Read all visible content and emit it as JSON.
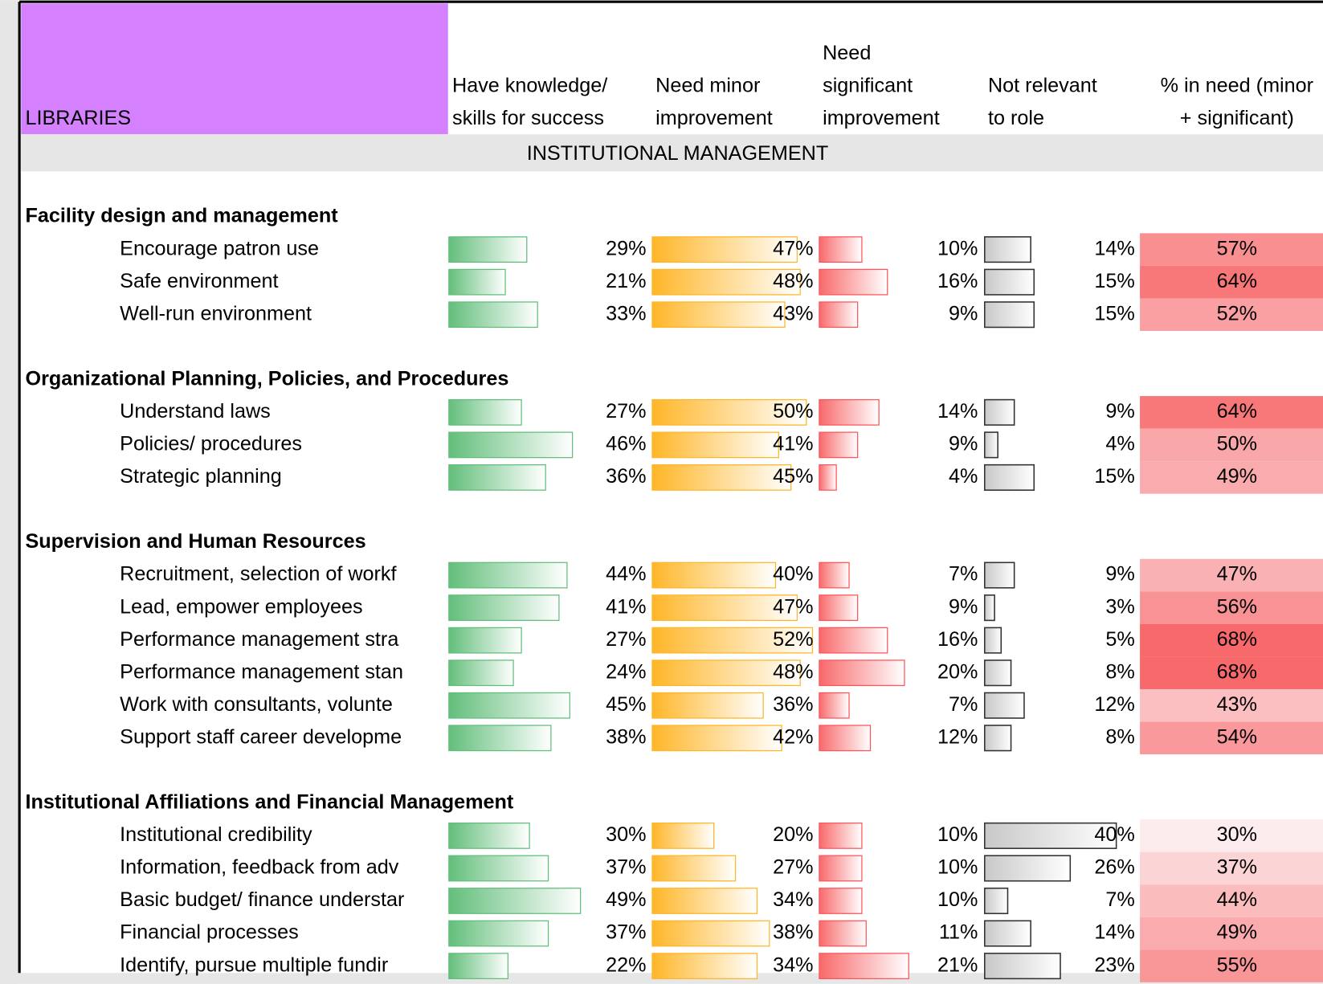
{
  "header": {
    "row_title": "LIBRARIES",
    "columns": [
      [
        "Have knowledge/",
        "skills for success"
      ],
      [
        "Need minor",
        "improvement"
      ],
      [
        "Need",
        "significant",
        "improvement"
      ],
      [
        "Not relevant",
        "to role"
      ],
      [
        "% in need (minor",
        "+ significant)"
      ]
    ]
  },
  "section": "INSTITUTIONAL MANAGEMENT",
  "bar_colors": [
    "#63be7b",
    "#ffb628",
    "#f8696b",
    "#c8c8c8"
  ],
  "bar_borders": [
    "#63be7b",
    "#ffb628",
    "#ff555a",
    "#333333"
  ],
  "scale_colors": [
    "#fcecee",
    "#f8696b"
  ],
  "groups": [
    {
      "title": "Facility design and management",
      "rows": [
        {
          "label": "Encourage patron use",
          "cells": [
            {
              "value": 29,
              "label": "29%"
            },
            {
              "value": 47,
              "label": "47%"
            },
            {
              "value": 10,
              "label": "10%"
            },
            {
              "value": 14,
              "label": "14%"
            },
            {
              "value": 57,
              "label": "57%"
            }
          ]
        },
        {
          "label": "Safe environment",
          "cells": [
            {
              "value": 21,
              "label": "21%"
            },
            {
              "value": 48,
              "label": "48%"
            },
            {
              "value": 16,
              "label": "16%"
            },
            {
              "value": 15,
              "label": "15%"
            },
            {
              "value": 64,
              "label": "64%"
            }
          ]
        },
        {
          "label": "Well-run environment",
          "cells": [
            {
              "value": 33,
              "label": "33%"
            },
            {
              "value": 43,
              "label": "43%"
            },
            {
              "value": 9,
              "label": "9%"
            },
            {
              "value": 15,
              "label": "15%"
            },
            {
              "value": 52,
              "label": "52%"
            }
          ]
        }
      ]
    },
    {
      "title": "Organizational Planning, Policies, and Procedures",
      "rows": [
        {
          "label": "Understand laws",
          "cells": [
            {
              "value": 27,
              "label": "27%"
            },
            {
              "value": 50,
              "label": "50%"
            },
            {
              "value": 14,
              "label": "14%"
            },
            {
              "value": 9,
              "label": "9%"
            },
            {
              "value": 64,
              "label": "64%"
            }
          ]
        },
        {
          "label": "Policies/ procedures",
          "cells": [
            {
              "value": 46,
              "label": "46%"
            },
            {
              "value": 41,
              "label": "41%"
            },
            {
              "value": 9,
              "label": "9%"
            },
            {
              "value": 4,
              "label": "4%"
            },
            {
              "value": 50,
              "label": "50%"
            }
          ]
        },
        {
          "label": "Strategic planning",
          "cells": [
            {
              "value": 36,
              "label": "36%"
            },
            {
              "value": 45,
              "label": "45%"
            },
            {
              "value": 4,
              "label": "4%"
            },
            {
              "value": 15,
              "label": "15%"
            },
            {
              "value": 49,
              "label": "49%"
            }
          ]
        }
      ]
    },
    {
      "title": "Supervision and Human Resources",
      "rows": [
        {
          "label": "Recruitment, selection of workf",
          "cells": [
            {
              "value": 44,
              "label": "44%"
            },
            {
              "value": 40,
              "label": "40%"
            },
            {
              "value": 7,
              "label": "7%"
            },
            {
              "value": 9,
              "label": "9%"
            },
            {
              "value": 47,
              "label": "47%"
            }
          ]
        },
        {
          "label": "Lead, empower employees",
          "cells": [
            {
              "value": 41,
              "label": "41%"
            },
            {
              "value": 47,
              "label": "47%"
            },
            {
              "value": 9,
              "label": "9%"
            },
            {
              "value": 3,
              "label": "3%"
            },
            {
              "value": 56,
              "label": "56%"
            }
          ]
        },
        {
          "label": "Performance management stra",
          "cells": [
            {
              "value": 27,
              "label": "27%"
            },
            {
              "value": 52,
              "label": "52%"
            },
            {
              "value": 16,
              "label": "16%"
            },
            {
              "value": 5,
              "label": "5%"
            },
            {
              "value": 68,
              "label": "68%"
            }
          ]
        },
        {
          "label": "Performance management stan",
          "cells": [
            {
              "value": 24,
              "label": "24%"
            },
            {
              "value": 48,
              "label": "48%"
            },
            {
              "value": 20,
              "label": "20%"
            },
            {
              "value": 8,
              "label": "8%"
            },
            {
              "value": 68,
              "label": "68%"
            }
          ]
        },
        {
          "label": "Work  with consultants, volunte",
          "cells": [
            {
              "value": 45,
              "label": "45%"
            },
            {
              "value": 36,
              "label": "36%"
            },
            {
              "value": 7,
              "label": "7%"
            },
            {
              "value": 12,
              "label": "12%"
            },
            {
              "value": 43,
              "label": "43%"
            }
          ]
        },
        {
          "label": "Support staff career developme",
          "cells": [
            {
              "value": 38,
              "label": "38%"
            },
            {
              "value": 42,
              "label": "42%"
            },
            {
              "value": 12,
              "label": "12%"
            },
            {
              "value": 8,
              "label": "8%"
            },
            {
              "value": 54,
              "label": "54%"
            }
          ]
        }
      ]
    },
    {
      "title": "Institutional Affiliations and Financial Management",
      "rows": [
        {
          "label": "Institutional credibility",
          "cells": [
            {
              "value": 30,
              "label": "30%"
            },
            {
              "value": 20,
              "label": "20%"
            },
            {
              "value": 10,
              "label": "10%"
            },
            {
              "value": 40,
              "label": "40%"
            },
            {
              "value": 30,
              "label": "30%"
            }
          ]
        },
        {
          "label": "Information, feedback from adv",
          "cells": [
            {
              "value": 37,
              "label": "37%"
            },
            {
              "value": 27,
              "label": "27%"
            },
            {
              "value": 10,
              "label": "10%"
            },
            {
              "value": 26,
              "label": "26%"
            },
            {
              "value": 37,
              "label": "37%"
            }
          ]
        },
        {
          "label": "Basic budget/ finance understar",
          "cells": [
            {
              "value": 49,
              "label": "49%"
            },
            {
              "value": 34,
              "label": "34%"
            },
            {
              "value": 10,
              "label": "10%"
            },
            {
              "value": 7,
              "label": "7%"
            },
            {
              "value": 44,
              "label": "44%"
            }
          ]
        },
        {
          "label": "Financial processes",
          "cells": [
            {
              "value": 37,
              "label": "37%"
            },
            {
              "value": 38,
              "label": "38%"
            },
            {
              "value": 11,
              "label": "11%"
            },
            {
              "value": 14,
              "label": "14%"
            },
            {
              "value": 49,
              "label": "49%"
            }
          ]
        },
        {
          "label": "Identify, pursue multiple fundir",
          "cells": [
            {
              "value": 22,
              "label": "22%"
            },
            {
              "value": 34,
              "label": "34%"
            },
            {
              "value": 21,
              "label": "21%"
            },
            {
              "value": 23,
              "label": "23%"
            },
            {
              "value": 55,
              "label": "55%"
            }
          ]
        }
      ]
    }
  ]
}
